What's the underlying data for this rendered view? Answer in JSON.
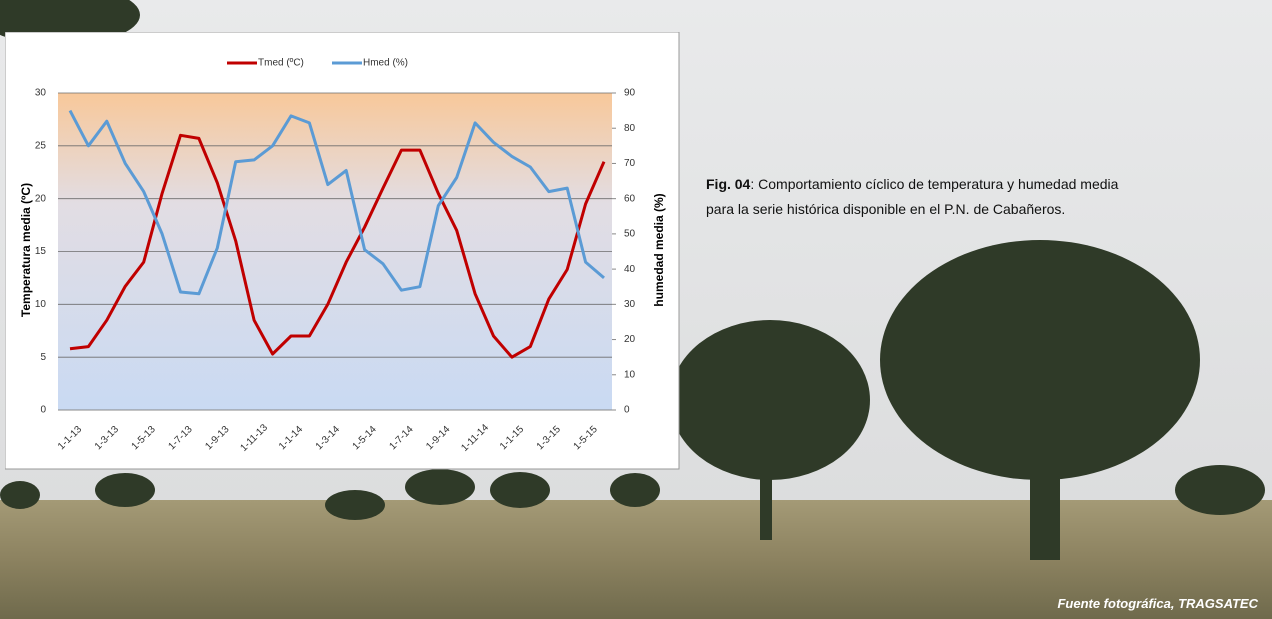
{
  "chart_data": {
    "type": "line",
    "categories": [
      "1-1-13",
      null,
      "1-3-13",
      null,
      "1-5-13",
      null,
      "1-7-13",
      null,
      "1-9-13",
      null,
      "1-11-13",
      null,
      "1-1-14",
      null,
      "1-3-14",
      null,
      "1-5-14",
      null,
      "1-7-14",
      null,
      "1-9-14",
      null,
      "1-11-14",
      null,
      "1-1-15",
      null,
      "1-3-15",
      null,
      "1-5-15",
      null
    ],
    "series": [
      {
        "name": "Tmed (ºC)",
        "color": "#c00000",
        "values": [
          5.8,
          6,
          8.5,
          11.7,
          14,
          20.5,
          26,
          25.7,
          21.5,
          16,
          8.5,
          5.3,
          7,
          7,
          10,
          14,
          17.3,
          21,
          24.6,
          24.6,
          20.5,
          17,
          11,
          7,
          5,
          6,
          10.5,
          13.3,
          19.5,
          23.5
        ]
      },
      {
        "name": "Hmed (%)",
        "color": "#5b9bd5",
        "axis": "y2",
        "values": [
          85,
          75,
          82,
          70,
          62,
          50,
          33.5,
          33,
          46,
          70.5,
          71,
          75,
          83.5,
          81.5,
          64,
          68,
          45.5,
          41.5,
          34,
          35,
          58,
          66,
          81.5,
          76,
          72,
          69,
          62,
          63,
          42,
          37.5
        ]
      }
    ],
    "ylabel": "Temperatura media (ºC)",
    "y2label": "humedad media (%)",
    "ylim": [
      0,
      30
    ],
    "yticks": [
      0,
      5,
      10,
      15,
      20,
      25,
      30
    ],
    "y2lim": [
      0,
      90
    ],
    "y2ticks": [
      0,
      10,
      20,
      30,
      40,
      50,
      60,
      70,
      80,
      90
    ],
    "grid": true,
    "legend": "top"
  },
  "caption": {
    "label": "Fig. 04",
    "text": ": Comportamiento cíclico de temperatura y humedad media para la serie histórica disponible en el P.N. de Cabañeros."
  },
  "credit": "Fuente fotográfica, TRAGSATEC"
}
